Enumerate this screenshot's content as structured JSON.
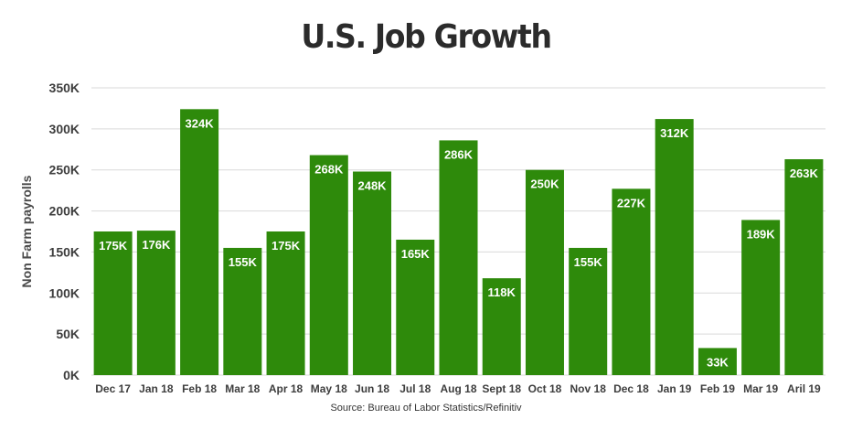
{
  "title": "U.S. Job Growth",
  "source": "Source: Bureau of Labor Statistics/Refinitiv",
  "colors": {
    "bar": "#2e8a0b",
    "data_label": "#ffffff",
    "gridline": "#d9d9d9",
    "text": "#3d3d3d"
  },
  "chart_data": {
    "type": "bar",
    "title": "U.S. Job Growth",
    "xlabel": "",
    "ylabel": "Non Farm payrolls",
    "ylim": [
      0,
      350000
    ],
    "yticks": [
      0,
      50000,
      100000,
      150000,
      200000,
      250000,
      300000,
      350000
    ],
    "ytick_labels": [
      "0K",
      "50K",
      "100K",
      "150K",
      "200K",
      "250K",
      "300K",
      "350K"
    ],
    "grid": true,
    "legend": "none",
    "categories": [
      "Dec 17",
      "Jan 18",
      "Feb 18",
      "Mar 18",
      "Apr 18",
      "May 18",
      "Jun 18",
      "Jul 18",
      "Aug 18",
      "Sept 18",
      "Oct 18",
      "Nov 18",
      "Dec 18",
      "Jan 19",
      "Feb 19",
      "Mar 19",
      "Aril 19"
    ],
    "values": [
      175000,
      176000,
      324000,
      155000,
      175000,
      268000,
      248000,
      165000,
      286000,
      118000,
      250000,
      155000,
      227000,
      312000,
      33000,
      189000,
      263000
    ],
    "data_labels": [
      "175K",
      "176K",
      "324K",
      "155K",
      "175K",
      "268K",
      "248K",
      "165K",
      "286K",
      "118K",
      "250K",
      "155K",
      "227K",
      "312K",
      "33K",
      "189K",
      "263K"
    ]
  }
}
